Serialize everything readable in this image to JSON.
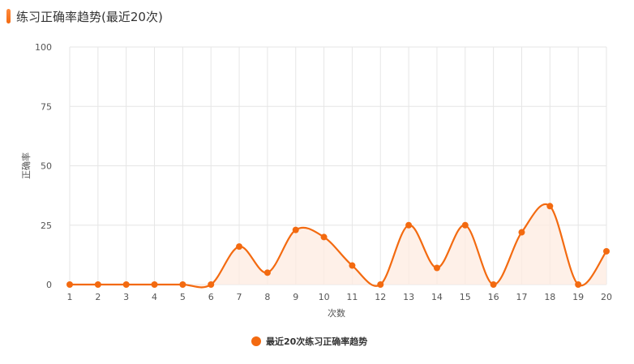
{
  "header": {
    "title": "练习正确率趋势(最近20次)"
  },
  "colors": {
    "accent": "#f36a10",
    "area": "#fdebe0",
    "grid": "#e6e6e6"
  },
  "chart_data": {
    "type": "line",
    "smooth": true,
    "categories": [
      "1",
      "2",
      "3",
      "4",
      "5",
      "6",
      "7",
      "8",
      "9",
      "10",
      "11",
      "12",
      "13",
      "14",
      "15",
      "16",
      "17",
      "18",
      "19",
      "20"
    ],
    "series": [
      {
        "name": "最近20次练习正确率趋势",
        "values": [
          0,
          0,
          0,
          0,
          0,
          0,
          16,
          5,
          23,
          20,
          8,
          0,
          25,
          7,
          25,
          0,
          22,
          33,
          0,
          14
        ]
      }
    ],
    "xlabel": "次数",
    "ylabel": "正确率",
    "ylim": [
      0,
      100
    ],
    "yticks": [
      0,
      25,
      50,
      75,
      100
    ],
    "grid": true,
    "legend": "bottom-center"
  }
}
